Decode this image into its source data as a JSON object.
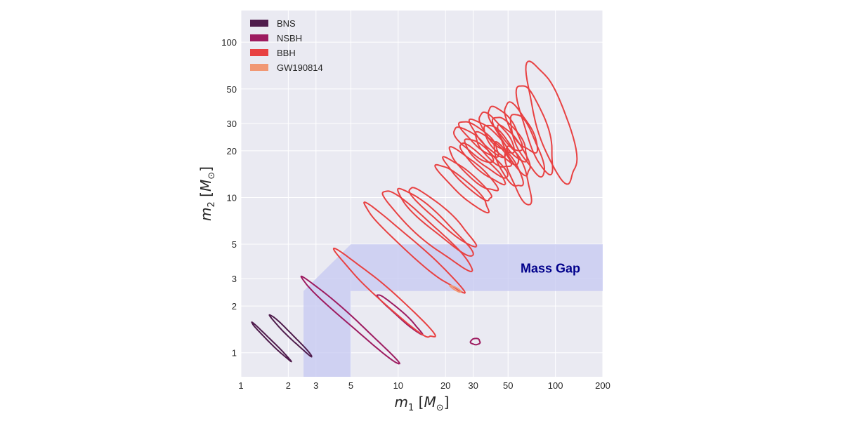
{
  "chart_data": {
    "type": "contour",
    "xscale": "log",
    "yscale": "log",
    "xlim": [
      1,
      200
    ],
    "ylim": [
      0.7,
      160
    ],
    "xticks": [
      1,
      2,
      3,
      5,
      10,
      20,
      30,
      50,
      100,
      200
    ],
    "xtick_labels": [
      "1",
      "2",
      "3",
      "5",
      "10",
      "20",
      "30",
      "50",
      "100",
      "200"
    ],
    "yticks": [
      1,
      2,
      3,
      5,
      10,
      20,
      30,
      50,
      100
    ],
    "ytick_labels": [
      "1",
      "2",
      "3",
      "5",
      "10",
      "20",
      "30",
      "50",
      "100"
    ],
    "xlabel": {
      "m": "m",
      "sub": "1",
      "unit": "M",
      "sun": "⊙"
    },
    "ylabel": {
      "m": "m",
      "sub": "2",
      "unit": "M",
      "sun": "⊙"
    },
    "grid": true,
    "background": "#eaeaf2",
    "legend_position": "upper-left",
    "legend": [
      {
        "label": "BNS",
        "color": "#4f1c4c"
      },
      {
        "label": "NSBH",
        "color": "#9d1b60"
      },
      {
        "label": "BBH",
        "color": "#e84142"
      },
      {
        "label": "GW190814",
        "color": "#f19874"
      }
    ],
    "mass_gap": {
      "label": "Mass Gap",
      "color": "#c6c8f2",
      "text_color": "#00008b",
      "polygon": [
        [
          2.5,
          0.7
        ],
        [
          2.5,
          2.5
        ],
        [
          5,
          5
        ],
        [
          200,
          5
        ],
        [
          200,
          2.5
        ],
        [
          5,
          2.5
        ],
        [
          5,
          0.7
        ]
      ]
    },
    "series": [
      {
        "category": "BNS",
        "color": "#4f1c4c",
        "center": [
          1.55,
          1.18
        ],
        "angle": -45,
        "semi_major": 0.175,
        "semi_minor": 0.009
      },
      {
        "category": "BNS",
        "color": "#4f1c4c",
        "center": [
          2.05,
          1.3
        ],
        "angle": -45,
        "semi_major": 0.19,
        "semi_minor": 0.013
      },
      {
        "category": "NSBH",
        "color": "#9d1b60",
        "center": [
          4.85,
          1.65
        ],
        "angle": -42,
        "semi_major": 0.42,
        "semi_minor": 0.025
      },
      {
        "category": "NSBH",
        "color": "#9d1b60",
        "center": [
          10.2,
          1.78
        ],
        "angle": -42,
        "semi_major": 0.19,
        "semi_minor": 0.02
      },
      {
        "category": "NSBH",
        "color": "#9d1b60",
        "center": [
          31.0,
          1.18
        ],
        "angle": 0,
        "semi_major": 0.03,
        "semi_minor": 0.02
      },
      {
        "category": "BBH",
        "color": "#e84142",
        "center": [
          8.5,
          2.3
        ],
        "angle": -42,
        "semi_major": 0.42,
        "semi_minor": 0.045
      },
      {
        "category": "BBH",
        "color": "#e84142",
        "center": [
          12.5,
          4.7
        ],
        "angle": -42,
        "semi_major": 0.42,
        "semi_minor": 0.04
      },
      {
        "category": "BBH",
        "color": "#e84142",
        "center": [
          15.0,
          6.2
        ],
        "angle": -42,
        "semi_major": 0.38,
        "semi_minor": 0.055
      },
      {
        "category": "BBH",
        "color": "#e84142",
        "center": [
          17.0,
          7.0
        ],
        "angle": -42,
        "semi_major": 0.32,
        "semi_minor": 0.05
      },
      {
        "category": "BBH",
        "color": "#e84142",
        "center": [
          19.0,
          7.6
        ],
        "angle": -42,
        "semi_major": 0.28,
        "semi_minor": 0.045
      },
      {
        "category": "BBH",
        "color": "#e84142",
        "center": [
          26.0,
          11.5
        ],
        "angle": -42,
        "semi_major": 0.22,
        "semi_minor": 0.045
      },
      {
        "category": "BBH",
        "color": "#e84142",
        "center": [
          28.0,
          13.0
        ],
        "angle": -42,
        "semi_major": 0.2,
        "semi_minor": 0.04
      },
      {
        "category": "BBH",
        "color": "#e84142",
        "center": [
          30.0,
          15.0
        ],
        "angle": -42,
        "semi_major": 0.2,
        "semi_minor": 0.045
      },
      {
        "category": "BBH",
        "color": "#e84142",
        "center": [
          34.0,
          16.5
        ],
        "angle": -42,
        "semi_major": 0.19,
        "semi_minor": 0.04
      },
      {
        "category": "BBH",
        "color": "#e84142",
        "center": [
          36.0,
          18.0
        ],
        "angle": -42,
        "semi_major": 0.18,
        "semi_minor": 0.045
      },
      {
        "category": "BBH",
        "color": "#e84142",
        "center": [
          30.0,
          22.0
        ],
        "angle": -42,
        "semi_major": 0.16,
        "semi_minor": 0.05
      },
      {
        "category": "BBH",
        "color": "#e84142",
        "center": [
          33.0,
          24.0
        ],
        "angle": -42,
        "semi_major": 0.16,
        "semi_minor": 0.05
      },
      {
        "category": "BBH",
        "color": "#e84142",
        "center": [
          38.0,
          24.0
        ],
        "angle": -45,
        "semi_major": 0.16,
        "semi_minor": 0.05
      },
      {
        "category": "BBH",
        "color": "#e84142",
        "center": [
          40.0,
          20.0
        ],
        "angle": -45,
        "semi_major": 0.15,
        "semi_minor": 0.05
      },
      {
        "category": "BBH",
        "color": "#e84142",
        "center": [
          42.0,
          26.0
        ],
        "angle": -50,
        "semi_major": 0.16,
        "semi_minor": 0.055
      },
      {
        "category": "BBH",
        "color": "#e84142",
        "center": [
          45.0,
          22.0
        ],
        "angle": -50,
        "semi_major": 0.16,
        "semi_minor": 0.05
      },
      {
        "category": "BBH",
        "color": "#e84142",
        "center": [
          48.0,
          28.0
        ],
        "angle": -55,
        "semi_major": 0.17,
        "semi_minor": 0.055
      },
      {
        "category": "BBH",
        "color": "#e84142",
        "center": [
          52.0,
          24.0
        ],
        "angle": -55,
        "semi_major": 0.17,
        "semi_minor": 0.055
      },
      {
        "category": "BBH",
        "color": "#e84142",
        "center": [
          55.0,
          20.0
        ],
        "angle": -60,
        "semi_major": 0.18,
        "semi_minor": 0.05
      },
      {
        "category": "BBH",
        "color": "#e84142",
        "center": [
          50.0,
          16.0
        ],
        "angle": -60,
        "semi_major": 0.16,
        "semi_minor": 0.05
      },
      {
        "category": "BBH",
        "color": "#e84142",
        "center": [
          60.0,
          28.0
        ],
        "angle": -60,
        "semi_major": 0.18,
        "semi_minor": 0.06
      },
      {
        "category": "BBH",
        "color": "#e84142",
        "center": [
          66.0,
          22.0
        ],
        "angle": -65,
        "semi_major": 0.22,
        "semi_minor": 0.06
      },
      {
        "category": "BBH",
        "color": "#e84142",
        "center": [
          58.0,
          14.0
        ],
        "angle": -70,
        "semi_major": 0.2,
        "semi_minor": 0.05
      },
      {
        "category": "BBH",
        "color": "#e84142",
        "center": [
          75.0,
          28.0
        ],
        "angle": -72,
        "semi_major": 0.3,
        "semi_minor": 0.07
      },
      {
        "category": "BBH",
        "color": "#e84142",
        "center": [
          95.0,
          30.0
        ],
        "angle": -72,
        "semi_major": 0.4,
        "semi_minor": 0.1
      },
      {
        "category": "GW190814",
        "color": "#f19874",
        "center": [
          23.2,
          2.58
        ],
        "angle": -30,
        "semi_major": 0.04,
        "semi_minor": 0.008
      }
    ],
    "gw190814_label": "GW190814",
    "point_count_note": ""
  }
}
